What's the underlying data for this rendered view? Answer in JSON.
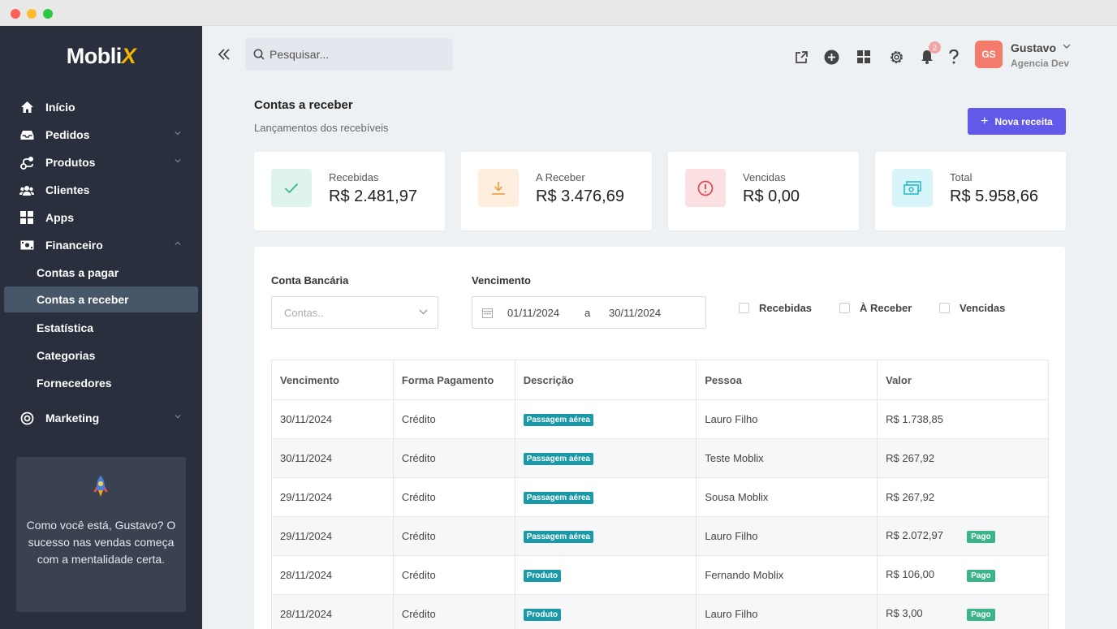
{
  "sidebar": {
    "logo_main": "Mobli",
    "logo_accent": "X",
    "items": [
      {
        "label": "Início"
      },
      {
        "label": "Pedidos"
      },
      {
        "label": "Produtos"
      },
      {
        "label": "Clientes"
      },
      {
        "label": "Apps"
      },
      {
        "label": "Financeiro"
      },
      {
        "label": "Marketing"
      }
    ],
    "financeiro_sub": [
      {
        "label": "Contas a pagar"
      },
      {
        "label": "Contas a receber"
      },
      {
        "label": "Estatística"
      },
      {
        "label": "Categorias"
      },
      {
        "label": "Fornecedores"
      }
    ],
    "promo_text": "Como você está, Gustavo? O sucesso nas vendas começa com a mentalidade certa."
  },
  "header": {
    "search_placeholder": "Pesquisar...",
    "notification_count": "2",
    "user_initials": "GS",
    "user_name": "Gustavo",
    "user_company": "Agencia Dev"
  },
  "page": {
    "title": "Contas a receber",
    "subtitle": "Lançamentos dos recebíveis",
    "new_button": "Nova receita"
  },
  "stats": [
    {
      "label": "Recebidas",
      "value": "R$ 2.481,97",
      "color": "#3cb48a"
    },
    {
      "label": "A Receber",
      "value": "R$ 3.476,69",
      "color": "#f0a04b"
    },
    {
      "label": "Vencidas",
      "value": "R$ 0,00",
      "color": "#e5484d"
    },
    {
      "label": "Total",
      "value": "R$ 5.958,66",
      "color": "#1ab6c8"
    }
  ],
  "filters": {
    "account_label": "Conta Bancária",
    "account_placeholder": "Contas..",
    "due_label": "Vencimento",
    "date_from": "01/11/2024",
    "date_sep": "a",
    "date_to": "30/11/2024",
    "checkboxes": [
      "Recebidas",
      "À Receber",
      "Vencidas"
    ]
  },
  "table": {
    "headers": [
      "Vencimento",
      "Forma Pagamento",
      "Descrição",
      "Pessoa",
      "Valor"
    ],
    "rows": [
      {
        "date": "30/11/2024",
        "method": "Crédito",
        "desc": "Passagem aérea",
        "person": "Lauro Filho",
        "value": "R$ 1.738,85",
        "status": ""
      },
      {
        "date": "30/11/2024",
        "method": "Crédito",
        "desc": "Passagem aérea",
        "person": "Teste Moblix",
        "value": "R$ 267,92",
        "status": ""
      },
      {
        "date": "29/11/2024",
        "method": "Crédito",
        "desc": "Passagem aérea",
        "person": "Sousa Moblix",
        "value": "R$ 267,92",
        "status": ""
      },
      {
        "date": "29/11/2024",
        "method": "Crédito",
        "desc": "Passagem aérea",
        "person": "Lauro Filho",
        "value": "R$ 2.072,97",
        "status": "Pago"
      },
      {
        "date": "28/11/2024",
        "method": "Crédito",
        "desc": "Produto",
        "person": "Fernando Moblix",
        "value": "R$ 106,00",
        "status": "Pago"
      },
      {
        "date": "28/11/2024",
        "method": "Crédito",
        "desc": "Produto",
        "person": "Lauro Filho",
        "value": "R$ 3,00",
        "status": "Pago"
      }
    ]
  }
}
